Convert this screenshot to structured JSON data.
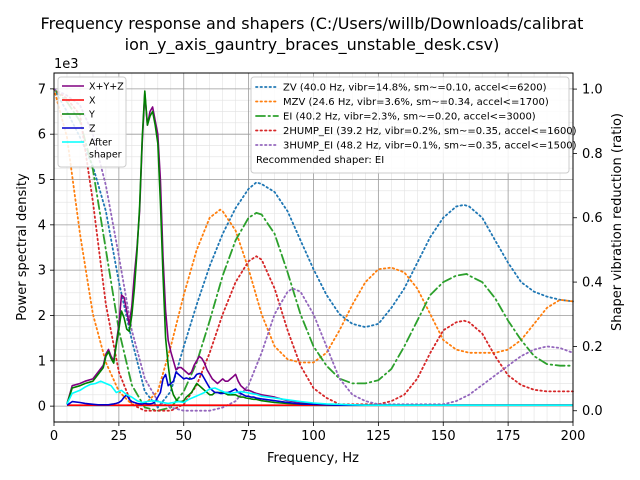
{
  "chart_data": {
    "type": "line",
    "title_line1": "Frequency response and shapers (C:/Users/willb/Downloads/calibrat",
    "title_line2": "ion_y_axis_gauntry_braces_unstable_desk.csv)",
    "xlabel": "Frequency, Hz",
    "ylabel": "Power spectral density",
    "y2label": "Shaper vibration reduction (ratio)",
    "y_scale_label": "1e3",
    "xlim": [
      0,
      200
    ],
    "ylim": [
      -0.35,
      7.35
    ],
    "y2lim": [
      -0.035,
      1.05
    ],
    "x_ticks": [
      0,
      25,
      50,
      75,
      100,
      125,
      150,
      175,
      200
    ],
    "x_tick_labels": [
      "0",
      "25",
      "50",
      "75",
      "100",
      "125",
      "150",
      "175",
      "200"
    ],
    "y_ticks": [
      0,
      1,
      2,
      3,
      4,
      5,
      6,
      7
    ],
    "y_tick_labels": [
      "0",
      "1",
      "2",
      "3",
      "4",
      "5",
      "6",
      "7"
    ],
    "y2_ticks": [
      0,
      0.2,
      0.4,
      0.6,
      0.8,
      1.0
    ],
    "y2_tick_labels": [
      "0.0",
      "0.2",
      "0.4",
      "0.6",
      "0.8",
      "1.0"
    ],
    "psd_series": [
      {
        "name": "X+Y+Z",
        "color": "#800080",
        "style": "solid",
        "x": [
          5,
          7,
          10,
          12,
          15,
          17,
          19,
          20,
          21,
          22,
          23,
          24,
          25,
          26,
          27,
          28,
          29,
          30,
          31,
          32,
          33,
          34,
          35,
          36,
          37,
          38,
          39,
          40,
          41,
          42,
          43,
          44,
          45,
          46,
          47,
          48,
          49,
          50,
          51,
          52,
          53,
          54,
          55,
          56,
          57,
          58,
          59,
          60,
          61,
          62,
          63,
          64,
          65,
          66,
          67,
          68,
          69,
          70,
          71,
          72,
          73,
          74,
          75,
          76,
          77,
          78,
          80,
          85,
          90,
          95,
          100,
          105,
          110,
          115,
          120,
          130,
          140,
          150,
          160,
          170,
          180,
          190,
          200
        ],
        "y": [
          0.05,
          0.45,
          0.5,
          0.55,
          0.6,
          0.75,
          0.9,
          1.15,
          1.25,
          1.1,
          1.0,
          1.4,
          1.8,
          2.45,
          2.4,
          2.1,
          1.8,
          2.2,
          2.9,
          3.5,
          4.3,
          5.8,
          6.9,
          6.2,
          6.5,
          6.6,
          6.3,
          6.0,
          5.0,
          3.3,
          2.1,
          1.45,
          1.2,
          1.0,
          0.8,
          0.85,
          0.85,
          0.8,
          0.75,
          0.7,
          0.75,
          0.9,
          1.0,
          1.1,
          1.05,
          0.95,
          0.8,
          0.7,
          0.6,
          0.55,
          0.5,
          0.55,
          0.6,
          0.55,
          0.55,
          0.6,
          0.65,
          0.7,
          0.55,
          0.45,
          0.4,
          0.35,
          0.35,
          0.33,
          0.3,
          0.28,
          0.25,
          0.2,
          0.12,
          0.08,
          0.05,
          0.04,
          0.03,
          0.03,
          0.02,
          0.02,
          0.02,
          0.02,
          0.02,
          0.02,
          0.02,
          0.02,
          0.02
        ]
      },
      {
        "name": "X",
        "color": "#ff0000",
        "style": "solid",
        "x": [
          5,
          10,
          20,
          40,
          60,
          80,
          100,
          120,
          150,
          200
        ],
        "y": [
          0.02,
          0.02,
          0.02,
          0.02,
          0.02,
          0.02,
          0.02,
          0.02,
          0.02,
          0.02
        ]
      },
      {
        "name": "Y",
        "color": "#008000",
        "style": "solid",
        "x": [
          5,
          7,
          10,
          12,
          15,
          17,
          19,
          20,
          21,
          22,
          23,
          24,
          25,
          26,
          27,
          28,
          29,
          30,
          31,
          32,
          33,
          34,
          35,
          36,
          37,
          38,
          39,
          40,
          41,
          42,
          43,
          44,
          45,
          46,
          47,
          48,
          49,
          50,
          51,
          52,
          53,
          54,
          55,
          56,
          57,
          58,
          59,
          60,
          61,
          62,
          63,
          64,
          65,
          66,
          67,
          68,
          69,
          70,
          71,
          72,
          73,
          74,
          75,
          76,
          77,
          78,
          80,
          85,
          90,
          95,
          100,
          105,
          110,
          115,
          120,
          130,
          140,
          150,
          160,
          170,
          180,
          190,
          200
        ],
        "y": [
          0.05,
          0.4,
          0.45,
          0.5,
          0.55,
          0.7,
          0.85,
          1.1,
          1.2,
          1.05,
          0.95,
          1.35,
          1.7,
          2.1,
          1.95,
          1.7,
          1.65,
          2.0,
          2.6,
          3.4,
          4.4,
          5.9,
          6.95,
          6.2,
          6.4,
          6.5,
          6.2,
          5.8,
          4.5,
          2.9,
          1.5,
          0.9,
          0.45,
          0.25,
          0.15,
          0.1,
          0.1,
          0.12,
          0.2,
          0.25,
          0.3,
          0.4,
          0.5,
          0.45,
          0.4,
          0.35,
          0.3,
          0.25,
          0.25,
          0.3,
          0.3,
          0.3,
          0.3,
          0.28,
          0.25,
          0.25,
          0.25,
          0.25,
          0.22,
          0.2,
          0.2,
          0.18,
          0.17,
          0.16,
          0.15,
          0.15,
          0.12,
          0.08,
          0.06,
          0.05,
          0.04,
          0.03,
          0.02,
          0.02,
          0.02,
          0.02,
          0.02,
          0.02,
          0.02,
          0.02,
          0.02,
          0.02,
          0.02
        ]
      },
      {
        "name": "Z",
        "color": "#0000cd",
        "style": "solid",
        "x": [
          5,
          7,
          10,
          12,
          15,
          17,
          19,
          20,
          21,
          22,
          23,
          24,
          25,
          26,
          27,
          28,
          29,
          30,
          31,
          32,
          33,
          34,
          35,
          36,
          37,
          38,
          39,
          40,
          41,
          42,
          43,
          44,
          45,
          46,
          47,
          48,
          49,
          50,
          51,
          52,
          53,
          54,
          55,
          56,
          57,
          58,
          59,
          60,
          61,
          62,
          63,
          64,
          65,
          66,
          67,
          68,
          69,
          70,
          71,
          72,
          73,
          74,
          75,
          76,
          77,
          78,
          80,
          85,
          90,
          95,
          100,
          105,
          110,
          115,
          120,
          130,
          140,
          150,
          160,
          170,
          180,
          190,
          200
        ],
        "y": [
          0.02,
          0.1,
          0.08,
          0.06,
          0.04,
          0.03,
          0.03,
          0.03,
          0.03,
          0.04,
          0.05,
          0.06,
          0.08,
          0.12,
          0.2,
          0.25,
          0.15,
          0.1,
          0.08,
          0.06,
          0.05,
          0.05,
          0.06,
          0.05,
          0.05,
          0.06,
          0.1,
          0.2,
          0.3,
          0.6,
          0.7,
          0.45,
          0.5,
          0.55,
          0.75,
          0.7,
          0.65,
          0.6,
          0.62,
          0.6,
          0.6,
          0.62,
          0.7,
          0.72,
          0.7,
          0.6,
          0.5,
          0.4,
          0.35,
          0.3,
          0.3,
          0.28,
          0.28,
          0.3,
          0.3,
          0.32,
          0.35,
          0.38,
          0.3,
          0.28,
          0.25,
          0.22,
          0.22,
          0.2,
          0.2,
          0.18,
          0.16,
          0.12,
          0.08,
          0.05,
          0.04,
          0.03,
          0.02,
          0.02,
          0.02,
          0.02,
          0.02,
          0.02,
          0.02,
          0.02,
          0.02,
          0.02,
          0.02
        ]
      },
      {
        "name": "After\nshaper",
        "color": "#00ffff",
        "style": "solid",
        "x": [
          5,
          7,
          10,
          12,
          14,
          16,
          18,
          20,
          22,
          24,
          26,
          28,
          30,
          32,
          34,
          36,
          38,
          40,
          42,
          44,
          46,
          48,
          50,
          52,
          54,
          56,
          58,
          60,
          62,
          64,
          66,
          68,
          70,
          72,
          74,
          76,
          78,
          80,
          85,
          90,
          95,
          100,
          105,
          110,
          115,
          120,
          130,
          140,
          150,
          160,
          170,
          180,
          190,
          200
        ],
        "y": [
          0.05,
          0.28,
          0.35,
          0.42,
          0.48,
          0.5,
          0.55,
          0.5,
          0.45,
          0.3,
          0.35,
          0.25,
          0.2,
          0.12,
          0.08,
          0.1,
          0.12,
          0.1,
          0.08,
          0.06,
          0.08,
          0.1,
          0.08,
          0.15,
          0.2,
          0.25,
          0.3,
          0.38,
          0.4,
          0.35,
          0.3,
          0.28,
          0.3,
          0.32,
          0.3,
          0.28,
          0.26,
          0.22,
          0.18,
          0.14,
          0.1,
          0.07,
          0.05,
          0.04,
          0.03,
          0.02,
          0.02,
          0.02,
          0.02,
          0.02,
          0.02,
          0.02,
          0.02,
          0.02
        ]
      }
    ],
    "shaper_series": [
      {
        "name": "ZV (40.0 Hz, vibr=14.8%, sm~=0.10, accel<=6200)",
        "color": "#1f77b4",
        "style": "dotted",
        "x": [
          0,
          5,
          10,
          15,
          20,
          25,
          30,
          35,
          40,
          45,
          50,
          55,
          60,
          65,
          70,
          75,
          78,
          80,
          85,
          90,
          95,
          100,
          105,
          110,
          115,
          120,
          125,
          130,
          135,
          140,
          145,
          150,
          155,
          158,
          160,
          165,
          170,
          175,
          180,
          185,
          190,
          195,
          200
        ],
        "y": [
          1.0,
          0.93,
          0.85,
          0.76,
          0.62,
          0.4,
          0.22,
          0.06,
          0.01,
          0.06,
          0.2,
          0.33,
          0.45,
          0.55,
          0.63,
          0.69,
          0.71,
          0.705,
          0.68,
          0.62,
          0.53,
          0.44,
          0.36,
          0.3,
          0.27,
          0.26,
          0.27,
          0.32,
          0.38,
          0.46,
          0.54,
          0.6,
          0.635,
          0.64,
          0.635,
          0.6,
          0.53,
          0.46,
          0.4,
          0.37,
          0.355,
          0.345,
          0.34
        ]
      },
      {
        "name": "MZV (24.6 Hz, vibr=3.6%, sm~=0.34, accel<=1700)",
        "color": "#ff7f0e",
        "style": "dotted",
        "x": [
          0,
          5,
          10,
          15,
          20,
          25,
          30,
          35,
          40,
          45,
          50,
          55,
          60,
          64,
          65,
          70,
          75,
          80,
          85,
          90,
          95,
          100,
          105,
          110,
          115,
          120,
          125,
          130,
          135,
          140,
          145,
          150,
          155,
          160,
          165,
          170,
          175,
          180,
          185,
          190,
          195,
          200
        ],
        "y": [
          1.0,
          0.85,
          0.55,
          0.3,
          0.15,
          0.06,
          0.02,
          0.02,
          0.06,
          0.2,
          0.36,
          0.5,
          0.6,
          0.625,
          0.62,
          0.56,
          0.44,
          0.3,
          0.2,
          0.16,
          0.15,
          0.15,
          0.18,
          0.25,
          0.33,
          0.4,
          0.44,
          0.445,
          0.43,
          0.38,
          0.3,
          0.22,
          0.19,
          0.18,
          0.18,
          0.18,
          0.19,
          0.22,
          0.27,
          0.32,
          0.345,
          0.34
        ]
      },
      {
        "name": "EI (40.2 Hz, vibr=2.3%, sm~=0.20, accel<=3000)",
        "color": "#2ca02c",
        "style": "dashdot",
        "x": [
          0,
          5,
          10,
          15,
          20,
          25,
          30,
          35,
          40,
          45,
          50,
          55,
          60,
          65,
          70,
          75,
          78,
          80,
          85,
          90,
          95,
          100,
          105,
          110,
          115,
          120,
          125,
          130,
          135,
          140,
          145,
          150,
          155,
          159,
          160,
          165,
          170,
          175,
          180,
          185,
          190,
          195,
          200
        ],
        "y": [
          1.0,
          0.96,
          0.9,
          0.75,
          0.5,
          0.25,
          0.08,
          0.01,
          0.0,
          0.01,
          0.06,
          0.15,
          0.28,
          0.42,
          0.53,
          0.6,
          0.615,
          0.61,
          0.55,
          0.43,
          0.3,
          0.2,
          0.14,
          0.1,
          0.085,
          0.085,
          0.095,
          0.13,
          0.2,
          0.28,
          0.36,
          0.4,
          0.42,
          0.425,
          0.42,
          0.4,
          0.35,
          0.28,
          0.22,
          0.17,
          0.145,
          0.14,
          0.14
        ]
      },
      {
        "name": "2HUMP_EI (39.2 Hz, vibr=0.2%, sm~=0.35, accel<=1600)",
        "color": "#d62728",
        "style": "dotted",
        "x": [
          0,
          5,
          10,
          15,
          20,
          25,
          30,
          35,
          40,
          45,
          50,
          55,
          60,
          65,
          70,
          75,
          78,
          80,
          85,
          90,
          95,
          100,
          105,
          110,
          115,
          120,
          125,
          130,
          135,
          140,
          145,
          150,
          155,
          158,
          160,
          165,
          170,
          175,
          180,
          185,
          190,
          195,
          200
        ],
        "y": [
          1.0,
          0.97,
          0.92,
          0.65,
          0.33,
          0.12,
          0.02,
          0.0,
          0.0,
          0.0,
          0.02,
          0.08,
          0.18,
          0.3,
          0.4,
          0.465,
          0.48,
          0.47,
          0.38,
          0.25,
          0.14,
          0.07,
          0.04,
          0.02,
          0.02,
          0.02,
          0.02,
          0.03,
          0.05,
          0.1,
          0.18,
          0.25,
          0.275,
          0.28,
          0.275,
          0.24,
          0.17,
          0.11,
          0.08,
          0.065,
          0.06,
          0.06,
          0.06
        ]
      },
      {
        "name": "3HUMP_EI (48.2 Hz, vibr=0.1%, sm~=0.35, accel<=1500)",
        "color": "#9467bd",
        "style": "dotted",
        "x": [
          0,
          5,
          10,
          15,
          20,
          25,
          30,
          35,
          40,
          45,
          50,
          55,
          60,
          65,
          70,
          75,
          80,
          85,
          90,
          92,
          95,
          100,
          105,
          110,
          115,
          120,
          125,
          130,
          135,
          140,
          145,
          150,
          155,
          160,
          165,
          170,
          175,
          180,
          185,
          190,
          195,
          200
        ],
        "y": [
          1.0,
          0.98,
          0.95,
          0.86,
          0.7,
          0.48,
          0.25,
          0.1,
          0.03,
          0.01,
          0.0,
          0.0,
          0.0,
          0.01,
          0.03,
          0.08,
          0.18,
          0.3,
          0.37,
          0.38,
          0.37,
          0.3,
          0.2,
          0.1,
          0.05,
          0.03,
          0.02,
          0.02,
          0.02,
          0.02,
          0.02,
          0.02,
          0.03,
          0.05,
          0.08,
          0.11,
          0.14,
          0.17,
          0.19,
          0.2,
          0.195,
          0.18
        ]
      }
    ],
    "recommended_shaper": "Recommended shaper: EI",
    "legend_left_loc": "top-left",
    "legend_right_loc": "top-right",
    "grid": true
  }
}
